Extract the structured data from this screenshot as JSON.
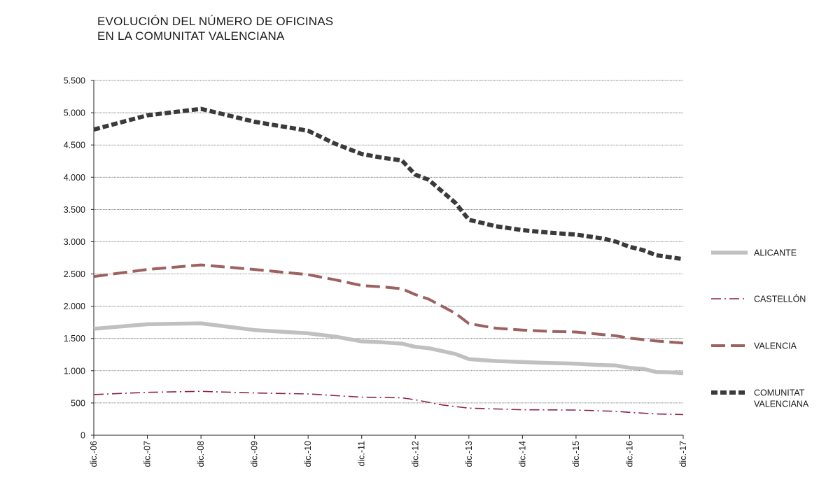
{
  "chart_data": {
    "type": "line",
    "title_line1": "EVOLUCIÓN DEL NÚMERO DE OFICINAS",
    "title_line2": "EN LA COMUNITAT VALENCIANA",
    "xlabel": "",
    "ylabel": "",
    "ylim": [
      0,
      5500
    ],
    "yticks": [
      0,
      500,
      1000,
      1500,
      2000,
      2500,
      3000,
      3500,
      4000,
      4500,
      5000,
      5500
    ],
    "ytick_labels": [
      "0",
      "500",
      "1.000",
      "1.500",
      "2.000",
      "2.500",
      "3.000",
      "3.500",
      "4.000",
      "4.500",
      "5.000",
      "5.500"
    ],
    "categories": [
      "dic.-06",
      "dic.-07",
      "dic.-08",
      "dic.-09",
      "dic.-10",
      "dic.-11",
      "dic.-12",
      "dic.-13",
      "dic.-14",
      "dic.-15",
      "dic.-16",
      "dic.-17"
    ],
    "grid": "horizontal",
    "legend_position": "right",
    "series": [
      {
        "name": "ALICANTE",
        "color": "#c0c0c0",
        "style": "solid-thick",
        "x": [
          0,
          1,
          2,
          3,
          4,
          4.5,
          5,
          5.4,
          5.75,
          6,
          6.25,
          6.75,
          7,
          7.5,
          8,
          8.5,
          9,
          9.4,
          9.75,
          10,
          10.25,
          10.5,
          10.75,
          11
        ],
        "values": [
          1650,
          1720,
          1735,
          1630,
          1580,
          1530,
          1455,
          1440,
          1420,
          1370,
          1350,
          1260,
          1180,
          1150,
          1135,
          1120,
          1110,
          1090,
          1080,
          1045,
          1030,
          980,
          975,
          960
        ]
      },
      {
        "name": "CASTELLÓN",
        "color": "#8b2252",
        "style": "dash-dot",
        "x": [
          0,
          1,
          2,
          3,
          4,
          5,
          5.75,
          6,
          6.5,
          7,
          8,
          9,
          9.75,
          10,
          10.5,
          11
        ],
        "values": [
          630,
          665,
          680,
          655,
          640,
          590,
          580,
          550,
          470,
          420,
          395,
          390,
          370,
          355,
          330,
          320
        ]
      },
      {
        "name": "VALENCIA",
        "color": "#9c6262",
        "style": "long-dash",
        "x": [
          0,
          1,
          2,
          3,
          4,
          4.5,
          5,
          5.4,
          5.75,
          6,
          6.25,
          6.75,
          7,
          7.5,
          8,
          8.5,
          9,
          9.5,
          9.75,
          10,
          10.5,
          11
        ],
        "values": [
          2460,
          2570,
          2640,
          2570,
          2490,
          2410,
          2320,
          2300,
          2270,
          2180,
          2110,
          1890,
          1730,
          1660,
          1630,
          1610,
          1600,
          1560,
          1540,
          1505,
          1460,
          1430
        ]
      },
      {
        "name": "COMUNITAT VALENCIANA",
        "label_lines": [
          "COMUNITAT",
          "VALENCIANA"
        ],
        "color": "#3a3a3a",
        "style": "short-dash-thick",
        "x": [
          0,
          1,
          2,
          3,
          4,
          4.5,
          5,
          5.4,
          5.75,
          6,
          6.25,
          6.75,
          7,
          7.5,
          8,
          8.5,
          9,
          9.5,
          9.75,
          10,
          10.25,
          10.5,
          11
        ],
        "values": [
          4740,
          4960,
          5060,
          4860,
          4720,
          4520,
          4360,
          4300,
          4260,
          4040,
          3960,
          3600,
          3340,
          3240,
          3180,
          3140,
          3110,
          3050,
          3000,
          2920,
          2870,
          2790,
          2730
        ]
      }
    ]
  }
}
